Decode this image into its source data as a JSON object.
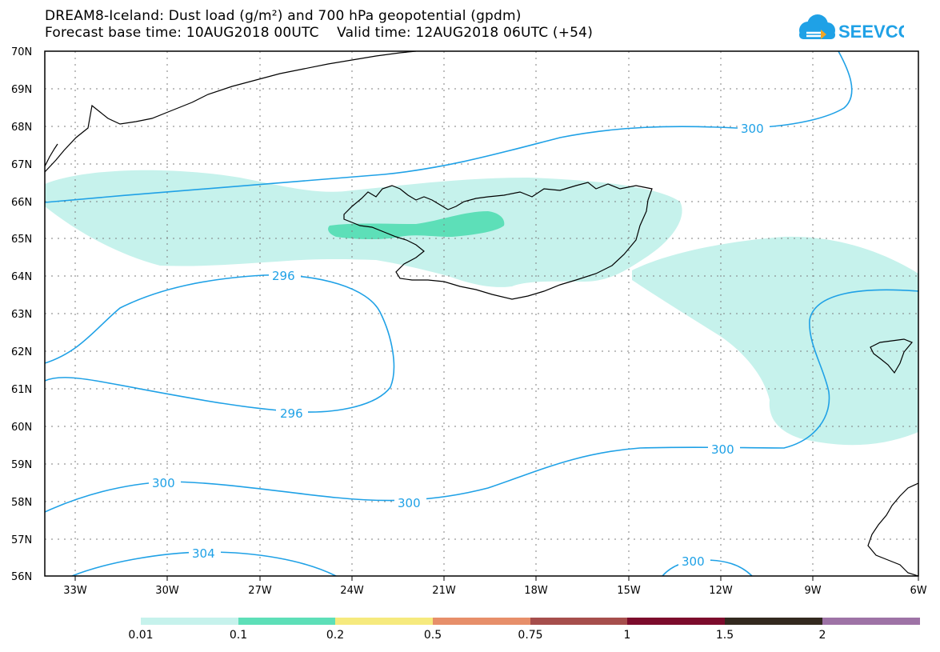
{
  "title_line1": "DREAM8-Iceland: Dust load (g/m²) and 700 hPa geopotential (gpdm)",
  "title_line2": "Forecast base time: 10AUG2018 00UTC    Valid time: 12AUG2018 06UTC (+54)",
  "logo_text": "SEEVCCC",
  "colors": {
    "contour": "#1fa1e6",
    "dust_low": "#c6f2ec",
    "dust_mid": "#5ddfb8",
    "coast": "#000000",
    "grid": "#7f7f7f"
  },
  "map_extent": {
    "lon_min": -34.5,
    "lon_max": -6,
    "lat_min": 56,
    "lat_max": 70
  },
  "lat_labels": [
    "70N",
    "69N",
    "68N",
    "67N",
    "66N",
    "65N",
    "64N",
    "63N",
    "62N",
    "61N",
    "60N",
    "59N",
    "58N",
    "57N",
    "56N"
  ],
  "lon_labels": [
    "33W",
    "30W",
    "27W",
    "24W",
    "21W",
    "18W",
    "15W",
    "12W",
    "9W",
    "6W"
  ],
  "contour_labels": [
    "300",
    "296",
    "296",
    "300",
    "300",
    "300",
    "304",
    "300"
  ],
  "legend": {
    "colors": [
      "#c6f2ec",
      "#5ddfb8",
      "#f6ea7e",
      "#e78f6a",
      "#a64e4c",
      "#7c0b2c",
      "#33291f",
      "#9e73a6"
    ],
    "labels": [
      "0.01",
      "0.1",
      "0.2",
      "0.5",
      "0.75",
      "1",
      "1.5",
      "2"
    ]
  }
}
